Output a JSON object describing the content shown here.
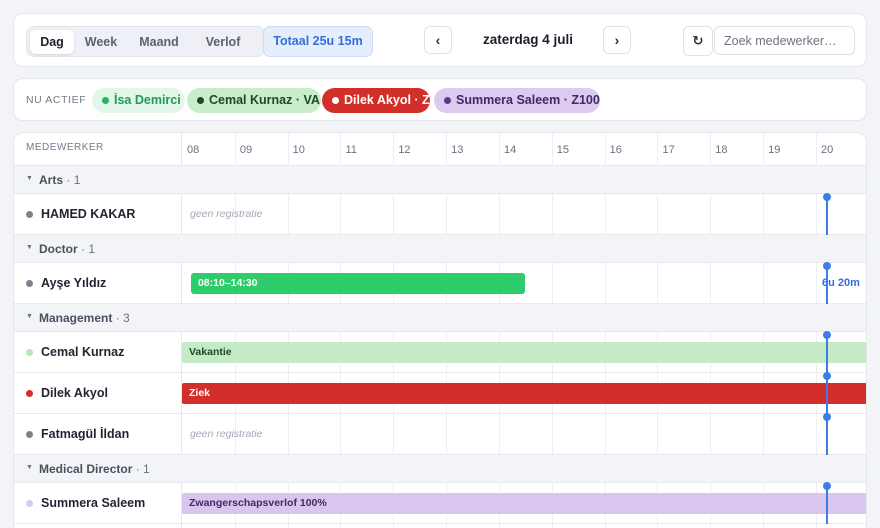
{
  "toolbar": {
    "views": [
      {
        "label": "Dag",
        "active": true
      },
      {
        "label": "Week",
        "active": false
      },
      {
        "label": "Maand",
        "active": false
      },
      {
        "label": "Verlof",
        "active": false
      }
    ],
    "total": "Totaal 25u 15m",
    "prev_icon": "‹",
    "next_icon": "›",
    "date": "zaterdag 4 juli",
    "refresh_icon": "↻",
    "search_placeholder": "Zoek medewerker…"
  },
  "active_bar": {
    "label": "NU ACTIEF",
    "chips": [
      {
        "label": "İsa Demirci",
        "bg": "#e3f6ea",
        "fg": "#1f9d55",
        "dot": "#22b55e"
      },
      {
        "label": "Cemal Kurnaz · VA",
        "bg": "#c9ecc9",
        "fg": "#1d4a22",
        "dot": "#1d4a22"
      },
      {
        "label": "Dilek Akyol · Z",
        "bg": "#d22f2b",
        "fg": "#ffffff",
        "dot": "#ffffff"
      },
      {
        "label": "Summera Saleem · Z100",
        "bg": "#dccaf0",
        "fg": "#3f2a63",
        "dot": "#5b3b8a"
      }
    ]
  },
  "grid": {
    "header_name": "MEDEWERKER",
    "hours": [
      "08",
      "09",
      "10",
      "11",
      "12",
      "13",
      "14",
      "15",
      "16",
      "17",
      "18",
      "19",
      "20"
    ],
    "no_registration": "geen registratie",
    "groups": [
      {
        "label": "Arts",
        "count": "· 1",
        "rows": [
          {
            "name": "HAMED KAKAR",
            "dot": "#7b818f",
            "type": "none"
          }
        ]
      },
      {
        "label": "Doctor",
        "count": "· 1",
        "rows": [
          {
            "name": "Ayşe Yıldız",
            "dot": "#7b818f",
            "type": "shift",
            "bar_label": "08:10–14:30",
            "start": 8.17,
            "end": 14.5,
            "bg": "#2ecc6a",
            "fg": "#ffffff",
            "duration": "6u 20m"
          }
        ]
      },
      {
        "label": "Management",
        "count": "· 3",
        "rows": [
          {
            "name": "Cemal Kurnaz",
            "dot": "#b8e6bb",
            "type": "leave",
            "bar_label": "Vakantie",
            "bg": "#c5ebc6",
            "fg": "#1d4a22"
          },
          {
            "name": "Dilek Akyol",
            "dot": "#d22f2b",
            "type": "leave",
            "bar_label": "Ziek",
            "bg": "#d22f2b",
            "fg": "#ffffff"
          },
          {
            "name": "Fatmagül İldan",
            "dot": "#7b818f",
            "type": "none"
          }
        ]
      },
      {
        "label": "Medical Director",
        "count": "· 1",
        "rows": [
          {
            "name": "Summera Saleem",
            "dot": "#dcc8ee",
            "type": "leave",
            "bar_label": "Zwangerschapsverlof 100%",
            "bg": "#d9c6ef",
            "fg": "#3f2a63"
          }
        ]
      }
    ],
    "now_hour": 20.2,
    "now_color": "#3c7ee6"
  }
}
